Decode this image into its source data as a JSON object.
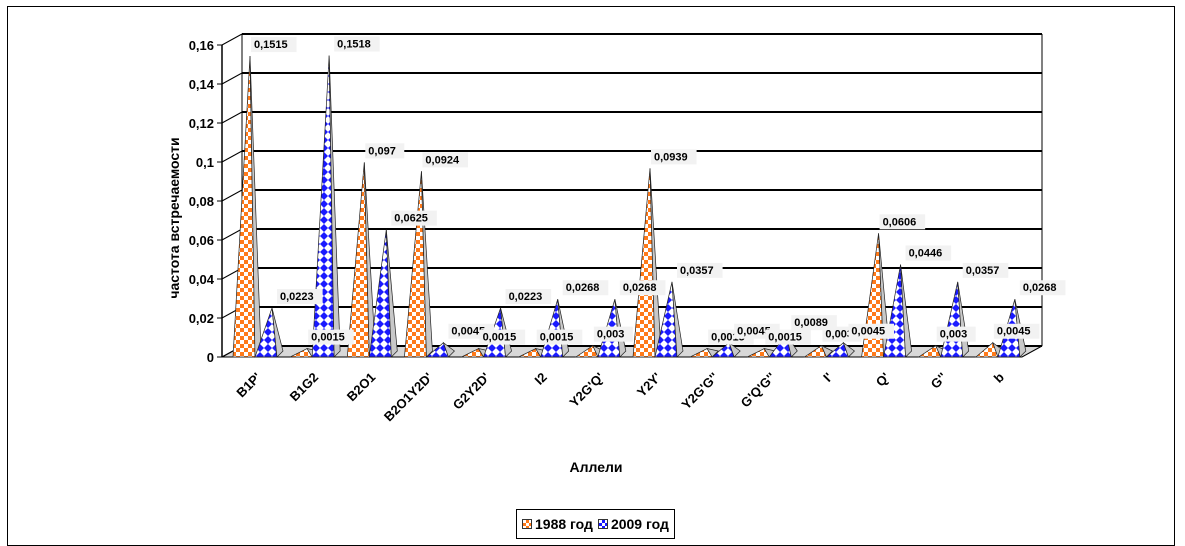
{
  "chart_data": {
    "type": "bar",
    "style": "3d-pyramid",
    "title": "",
    "xlabel": "Аллели",
    "ylabel": "частота встречаемости",
    "ylim": [
      0,
      0.16
    ],
    "yticks": [
      "0",
      "0,02",
      "0,04",
      "0,06",
      "0,08",
      "0,1",
      "0,12",
      "0,14",
      "0,16"
    ],
    "grid": true,
    "legend_position": "bottom",
    "categories": [
      "B1P'",
      "B1G2",
      "B2O1",
      "B2O1Y2D'",
      "G2Y2D'",
      "I2",
      "Y2G'Q'",
      "Y2Y'",
      "Y2G'G''",
      "G'Q'G''",
      "I'",
      "Q'",
      "G''",
      "b"
    ],
    "series": [
      {
        "name": "1988 год",
        "color": "#ff7a1a",
        "values": [
          0.1515,
          0.0015,
          0.097,
          0.0924,
          0.0015,
          0.0015,
          0.003,
          0.0939,
          0.0015,
          0.0015,
          0.003,
          0.0606,
          0.003,
          0.0045
        ],
        "labels": [
          "0,1515",
          "0,0015",
          "0,097",
          "0,0924",
          "0,0015",
          "0,0015",
          "0,003",
          "0,0939",
          "0,0015",
          "0,0015",
          "0,003",
          "0,0606",
          "0,003",
          "0,0045"
        ]
      },
      {
        "name": "2009 год",
        "color": "#1a1aff",
        "values": [
          0.0223,
          0.1518,
          0.0625,
          0.0045,
          0.0223,
          0.0268,
          0.0268,
          0.0357,
          0.0045,
          0.0089,
          0.0045,
          0.0446,
          0.0357,
          0.0268
        ],
        "labels": [
          "0,0223",
          "0,1518",
          "0,0625",
          "0,0045",
          "0,0223",
          "0,0268",
          "0,0268",
          "0,0357",
          "0,0045",
          "0,0089",
          "0,0045",
          "0,0446",
          "0,0357",
          "0,0268"
        ]
      }
    ]
  }
}
